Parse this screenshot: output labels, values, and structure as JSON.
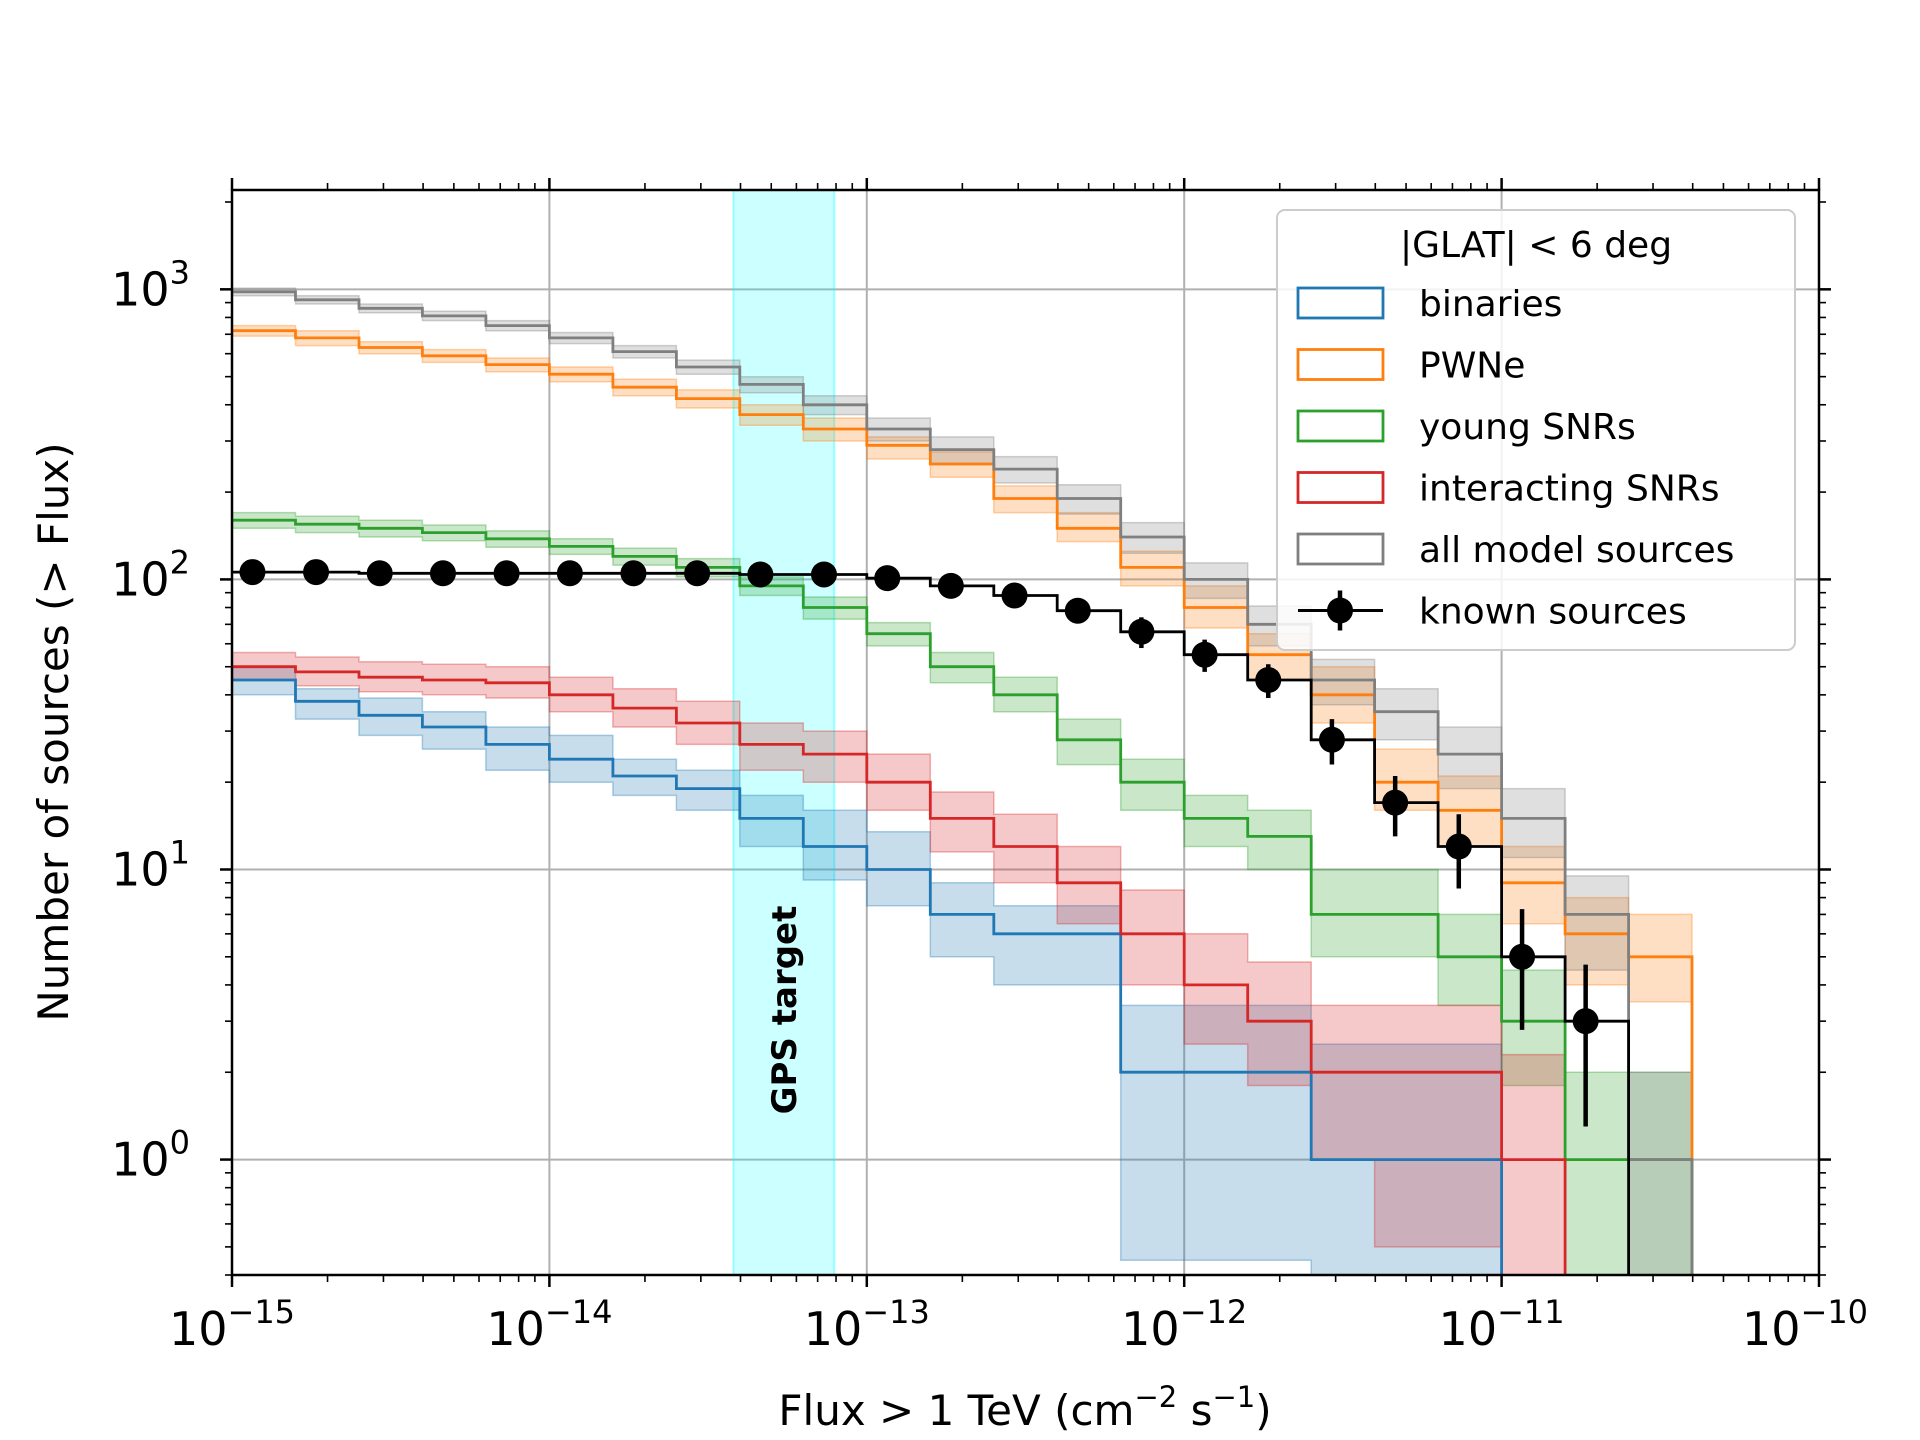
{
  "chart_data": {
    "type": "step",
    "xlabel": "Flux > 1 TeV (cm",
    "xlabel_sup1": "−2",
    "xlabel_mid": " s",
    "xlabel_sup2": "−1",
    "xlabel_end": ")",
    "ylabel": "Number of sources (> Flux)",
    "x_scale": "log",
    "y_scale": "log",
    "xlim": [
      1e-15,
      1e-10
    ],
    "ylim": [
      0.4,
      2200
    ],
    "x_ticks": [
      {
        "value": 1e-15,
        "base": "10",
        "exp": "−15"
      },
      {
        "value": 1e-14,
        "base": "10",
        "exp": "−14"
      },
      {
        "value": 1e-13,
        "base": "10",
        "exp": "−13"
      },
      {
        "value": 1e-12,
        "base": "10",
        "exp": "−12"
      },
      {
        "value": 1e-11,
        "base": "10",
        "exp": "−11"
      },
      {
        "value": 1e-10,
        "base": "10",
        "exp": "−10"
      }
    ],
    "y_ticks": [
      {
        "value": 1,
        "base": "10",
        "exp": "0"
      },
      {
        "value": 10,
        "base": "10",
        "exp": "1"
      },
      {
        "value": 100,
        "base": "10",
        "exp": "2"
      },
      {
        "value": 1000,
        "base": "10",
        "exp": "3"
      }
    ],
    "grid": true,
    "band": {
      "label": "GPS target",
      "x_range": [
        3.8e-14,
        7.9e-14
      ],
      "color": "#00ffff"
    },
    "legend": {
      "title": "|GLAT| < 6 deg",
      "placement": "upper right"
    },
    "bin_edges": [
      1e-15,
      1.585e-15,
      2.512e-15,
      3.981e-15,
      6.31e-15,
      1e-14,
      1.585e-14,
      2.512e-14,
      3.981e-14,
      6.31e-14,
      1e-13,
      1.585e-13,
      2.512e-13,
      3.981e-13,
      6.31e-13,
      1e-12,
      1.585e-12,
      2.512e-12,
      3.981e-12,
      6.31e-12,
      1e-11,
      1.585e-11,
      2.512e-11,
      3.981e-11
    ],
    "series": [
      {
        "name": "binaries",
        "color": "#1f77b4",
        "values": [
          45,
          38,
          34,
          31,
          27,
          24,
          21,
          19,
          15,
          12,
          10,
          7,
          6,
          6,
          2,
          2,
          2,
          1,
          1,
          1,
          0,
          0,
          0
        ],
        "lower": [
          40,
          33,
          29,
          26,
          22,
          20,
          18,
          16,
          12,
          9.2,
          7.5,
          5,
          4,
          4,
          0.45,
          0.45,
          0.45,
          0.2,
          0.2,
          0.2,
          0,
          0,
          0
        ],
        "upper": [
          50,
          42,
          39,
          35,
          31,
          29,
          24,
          22,
          18,
          16,
          13.5,
          9,
          7.5,
          7.5,
          3.4,
          3.4,
          3.4,
          2.5,
          2.5,
          2.5,
          0,
          0,
          0
        ]
      },
      {
        "name": "PWNe",
        "color": "#ff7f0e",
        "values": [
          720,
          680,
          630,
          590,
          550,
          510,
          460,
          420,
          370,
          330,
          290,
          250,
          190,
          150,
          110,
          80,
          55,
          40,
          20,
          16,
          9,
          6,
          5
        ],
        "lower": [
          690,
          640,
          600,
          560,
          520,
          480,
          430,
          390,
          340,
          300,
          260,
          225,
          170,
          135,
          95,
          68,
          45,
          32,
          16,
          12,
          6.5,
          4,
          3.5
        ],
        "upper": [
          750,
          720,
          660,
          620,
          580,
          540,
          490,
          450,
          400,
          360,
          310,
          275,
          210,
          170,
          125,
          95,
          65,
          50,
          26,
          21,
          12,
          8,
          7
        ]
      },
      {
        "name": "young SNRs",
        "color": "#2ca02c",
        "values": [
          160,
          155,
          150,
          145,
          138,
          130,
          120,
          110,
          95,
          80,
          65,
          50,
          40,
          28,
          20,
          15,
          13,
          7,
          7,
          5,
          3,
          1,
          1
        ],
        "lower": [
          150,
          145,
          140,
          136,
          129,
          122,
          112,
          102,
          88,
          73,
          59,
          44,
          35,
          23,
          16,
          12,
          10,
          5,
          5,
          3.4,
          1.8,
          0.3,
          0.3
        ],
        "upper": [
          170,
          165,
          160,
          154,
          147,
          138,
          128,
          118,
          102,
          87,
          71,
          56,
          46,
          33,
          24,
          18,
          16,
          10,
          10,
          7,
          4.5,
          2,
          2
        ]
      },
      {
        "name": "interacting SNRs",
        "color": "#d62728",
        "values": [
          50,
          48,
          46,
          45,
          44,
          40,
          36,
          32,
          27,
          25,
          20,
          15,
          12,
          9,
          6,
          4,
          3,
          2,
          2,
          2,
          1,
          0,
          0
        ],
        "lower": [
          45,
          43,
          41,
          40,
          39,
          35,
          31,
          27,
          22,
          20,
          16,
          11.5,
          9,
          6.5,
          4,
          2.5,
          1.8,
          1,
          0.5,
          0.5,
          0.2,
          0,
          0
        ],
        "upper": [
          56,
          54,
          52,
          51,
          50,
          46,
          42,
          38,
          32,
          30,
          25,
          18.5,
          15.5,
          12,
          8.5,
          6,
          4.8,
          3.4,
          3.4,
          3.4,
          2.3,
          0,
          0
        ]
      },
      {
        "name": "all model sources",
        "color": "#7f7f7f",
        "values": [
          980,
          920,
          860,
          810,
          750,
          680,
          610,
          540,
          470,
          400,
          330,
          280,
          240,
          190,
          140,
          100,
          70,
          45,
          35,
          25,
          15,
          7,
          1
        ],
        "lower": [
          950,
          890,
          830,
          780,
          720,
          650,
          580,
          510,
          440,
          370,
          300,
          250,
          215,
          168,
          123,
          86,
          59,
          37,
          28,
          19,
          11,
          4.5,
          0.4
        ],
        "upper": [
          1010,
          950,
          890,
          840,
          780,
          710,
          640,
          570,
          500,
          430,
          360,
          310,
          265,
          212,
          157,
          114,
          81,
          53,
          42,
          31,
          19,
          9.5,
          2
        ]
      }
    ],
    "known_sources": {
      "name": "known sources",
      "color": "#000000",
      "bin_edges": [
        1e-15,
        1.585e-15,
        2.512e-15,
        3.981e-15,
        6.31e-15,
        1e-14,
        1.585e-14,
        2.512e-14,
        3.981e-14,
        6.31e-14,
        1e-13,
        1.585e-13,
        2.512e-13,
        3.981e-13,
        6.31e-13,
        1e-12,
        1.585e-12,
        2.512e-12,
        3.981e-12,
        6.31e-12,
        1e-11,
        1.585e-11,
        2.512e-11
      ],
      "points": [
        {
          "x": 1.16e-15,
          "y": 106,
          "lo": 106,
          "hi": 106
        },
        {
          "x": 1.84e-15,
          "y": 106,
          "lo": 106,
          "hi": 106
        },
        {
          "x": 2.92e-15,
          "y": 105,
          "lo": 105,
          "hi": 105
        },
        {
          "x": 4.62e-15,
          "y": 105,
          "lo": 105,
          "hi": 105
        },
        {
          "x": 7.33e-15,
          "y": 105,
          "lo": 105,
          "hi": 105
        },
        {
          "x": 1.16e-14,
          "y": 105,
          "lo": 105,
          "hi": 105
        },
        {
          "x": 1.84e-14,
          "y": 105,
          "lo": 105,
          "hi": 105
        },
        {
          "x": 2.92e-14,
          "y": 105,
          "lo": 105,
          "hi": 105
        },
        {
          "x": 4.62e-14,
          "y": 104,
          "lo": 104,
          "hi": 104
        },
        {
          "x": 7.33e-14,
          "y": 104,
          "lo": 104,
          "hi": 104
        },
        {
          "x": 1.16e-13,
          "y": 101,
          "lo": 101,
          "hi": 101
        },
        {
          "x": 1.84e-13,
          "y": 95,
          "lo": 95,
          "hi": 95
        },
        {
          "x": 2.92e-13,
          "y": 88,
          "lo": 88,
          "hi": 88
        },
        {
          "x": 4.62e-13,
          "y": 78,
          "lo": 78,
          "hi": 78
        },
        {
          "x": 7.33e-13,
          "y": 66,
          "lo": 58,
          "hi": 74
        },
        {
          "x": 1.16e-12,
          "y": 55,
          "lo": 48,
          "hi": 62
        },
        {
          "x": 1.84e-12,
          "y": 45,
          "lo": 39,
          "hi": 51
        },
        {
          "x": 2.92e-12,
          "y": 28,
          "lo": 23,
          "hi": 33
        },
        {
          "x": 4.62e-12,
          "y": 17,
          "lo": 13,
          "hi": 21
        },
        {
          "x": 7.33e-12,
          "y": 12,
          "lo": 8.6,
          "hi": 15.5
        },
        {
          "x": 1.16e-11,
          "y": 5,
          "lo": 2.8,
          "hi": 7.3
        },
        {
          "x": 1.84e-11,
          "y": 3,
          "lo": 1.3,
          "hi": 4.7
        }
      ]
    }
  }
}
